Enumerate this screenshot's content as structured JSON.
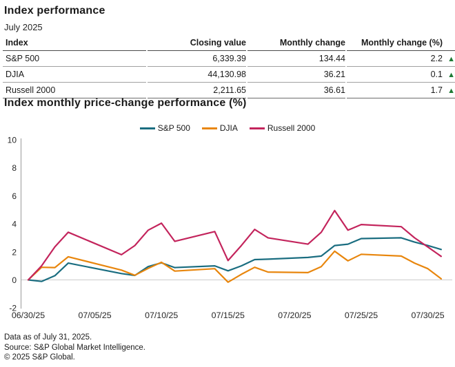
{
  "header": {
    "title": "Index performance",
    "subtitle": "July 2025"
  },
  "table": {
    "columns": [
      "Index",
      "Closing value",
      "Monthly change",
      "Monthly change (%)"
    ],
    "rows": [
      {
        "index": "S&P 500",
        "closing_value": "6,339.39",
        "monthly_change": "134.44",
        "monthly_change_pct": "2.2",
        "direction": "up"
      },
      {
        "index": "DJIA",
        "closing_value": "44,130.98",
        "monthly_change": "36.21",
        "monthly_change_pct": "0.1",
        "direction": "up"
      },
      {
        "index": "Russell 2000",
        "closing_value": "2,211.65",
        "monthly_change": "36.61",
        "monthly_change_pct": "1.7",
        "direction": "up"
      }
    ]
  },
  "icons": {
    "up_triangle": "▲"
  },
  "chart": {
    "title": "Index monthly price-change performance (%)"
  },
  "chart_data": {
    "type": "line",
    "title": "Index monthly price-change performance (%)",
    "x": [
      "06/30/25",
      "07/01/25",
      "07/02/25",
      "07/03/25",
      "07/07/25",
      "07/08/25",
      "07/09/25",
      "07/10/25",
      "07/11/25",
      "07/14/25",
      "07/15/25",
      "07/16/25",
      "07/17/25",
      "07/18/25",
      "07/21/25",
      "07/22/25",
      "07/23/25",
      "07/24/25",
      "07/25/25",
      "07/28/25",
      "07/29/25",
      "07/30/25",
      "07/31/25"
    ],
    "x_day_offsets": [
      0,
      1,
      2,
      3,
      7,
      8,
      9,
      10,
      11,
      14,
      15,
      16,
      17,
      18,
      21,
      22,
      23,
      24,
      25,
      28,
      29,
      30,
      31
    ],
    "series": [
      {
        "name": "S&P 500",
        "key": "sp500",
        "color": "#1a6d80",
        "values": [
          0,
          -0.11,
          0.3,
          1.2,
          0.45,
          0.32,
          0.95,
          1.22,
          0.88,
          1.0,
          0.65,
          1.0,
          1.45,
          1.48,
          1.6,
          1.7,
          2.45,
          2.55,
          2.95,
          3.0,
          2.7,
          2.45,
          2.17
        ]
      },
      {
        "name": "DJIA",
        "key": "djia",
        "color": "#e8860d",
        "values": [
          0,
          0.9,
          0.88,
          1.65,
          0.7,
          0.33,
          0.82,
          1.26,
          0.63,
          0.8,
          -0.16,
          0.4,
          0.9,
          0.56,
          0.52,
          0.95,
          2.05,
          1.36,
          1.83,
          1.7,
          1.2,
          0.8,
          0.08
        ]
      },
      {
        "name": "Russell 2000",
        "key": "russell2000",
        "color": "#c3245c",
        "values": [
          0,
          1.0,
          2.36,
          3.4,
          1.8,
          2.45,
          3.55,
          4.05,
          2.75,
          3.45,
          1.38,
          2.45,
          3.6,
          3.0,
          2.55,
          3.4,
          4.95,
          3.55,
          3.95,
          3.8,
          3.0,
          2.35,
          1.68
        ]
      }
    ],
    "x_ticks": [
      "06/30/25",
      "07/05/25",
      "07/10/25",
      "07/15/25",
      "07/20/25",
      "07/25/25",
      "07/30/25"
    ],
    "y_ticks": [
      10,
      8,
      6,
      4,
      2,
      0,
      -2
    ],
    "ylim": [
      -2,
      10
    ],
    "xlabel": "",
    "ylabel": "",
    "legend_position": "top-center",
    "grid": "zero-line-only"
  },
  "footer": {
    "line1": "Data as of July 31, 2025.",
    "line2": "Source: S&P Global Market Intelligence.",
    "line3": "© 2025 S&P Global."
  },
  "colors": {
    "sp500": "#1a6d80",
    "djia": "#e8860d",
    "russell2000": "#c3245c",
    "up_green": "#1e7a34",
    "axis": "#999999",
    "zero_line": "#cccccc"
  }
}
